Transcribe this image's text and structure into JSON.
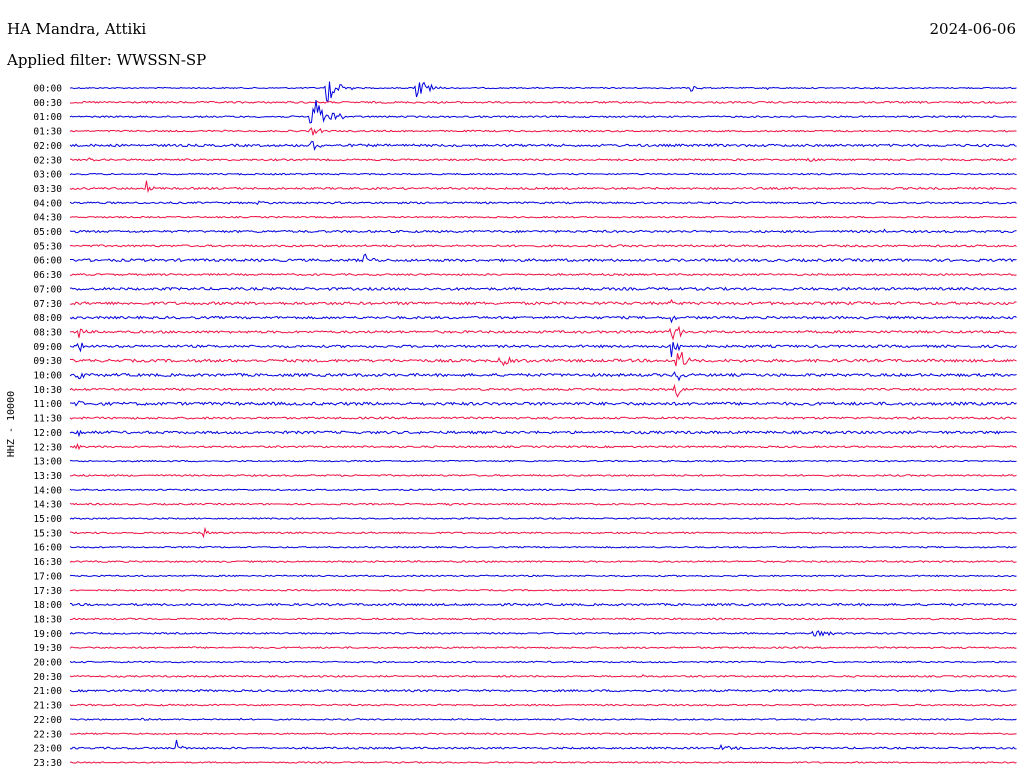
{
  "header": {
    "station": "HA Mandra, Attiki",
    "date": "2024-06-06",
    "filter": "Applied filter: WWSSN-SP"
  },
  "chart_data": {
    "type": "helicorder",
    "title": "HA Mandra, Attiki",
    "date": "2024-06-06",
    "filter": "WWSSN-SP",
    "ylabel": "HHZ - 10000",
    "colors": [
      "#0000dd",
      "#ee1144"
    ],
    "rows": [
      {
        "label": "00:00",
        "color": "#0000dd",
        "noise": 0.6,
        "events": [
          {
            "pos": 0.27,
            "amp": 18,
            "dur": 0.03
          },
          {
            "pos": 0.365,
            "amp": 14,
            "dur": 0.03
          },
          {
            "pos": 0.655,
            "amp": 5,
            "dur": 0.015
          },
          {
            "pos": 0.735,
            "amp": 2,
            "dur": 0.01
          }
        ]
      },
      {
        "label": "00:30",
        "color": "#ee1144",
        "noise": 0.9,
        "events": []
      },
      {
        "label": "01:00",
        "color": "#0000dd",
        "noise": 0.8,
        "events": [
          {
            "pos": 0.255,
            "amp": 26,
            "dur": 0.035
          }
        ]
      },
      {
        "label": "01:30",
        "color": "#ee1144",
        "noise": 0.8,
        "events": [
          {
            "pos": 0.255,
            "amp": 6,
            "dur": 0.02
          }
        ]
      },
      {
        "label": "02:00",
        "color": "#0000dd",
        "noise": 1.2,
        "events": [
          {
            "pos": 0.255,
            "amp": 6,
            "dur": 0.02
          }
        ]
      },
      {
        "label": "02:30",
        "color": "#ee1144",
        "noise": 0.9,
        "events": [
          {
            "pos": 0.02,
            "amp": 2,
            "dur": 0.01
          },
          {
            "pos": 0.555,
            "amp": 2,
            "dur": 0.01
          },
          {
            "pos": 0.78,
            "amp": 5,
            "dur": 0.02
          }
        ]
      },
      {
        "label": "03:00",
        "color": "#0000dd",
        "noise": 0.7,
        "events": []
      },
      {
        "label": "03:30",
        "color": "#ee1144",
        "noise": 1.0,
        "events": [
          {
            "pos": 0.08,
            "amp": 10,
            "dur": 0.012
          }
        ]
      },
      {
        "label": "04:00",
        "color": "#0000dd",
        "noise": 0.9,
        "events": [
          {
            "pos": 0.195,
            "amp": 2,
            "dur": 0.02
          }
        ]
      },
      {
        "label": "04:30",
        "color": "#ee1144",
        "noise": 0.7,
        "events": []
      },
      {
        "label": "05:00",
        "color": "#0000dd",
        "noise": 1.1,
        "events": [
          {
            "pos": 0.86,
            "amp": 3,
            "dur": 0.015
          }
        ]
      },
      {
        "label": "05:30",
        "color": "#ee1144",
        "noise": 1.0,
        "events": []
      },
      {
        "label": "06:00",
        "color": "#0000dd",
        "noise": 1.3,
        "events": [
          {
            "pos": 0.31,
            "amp": 7,
            "dur": 0.02
          }
        ]
      },
      {
        "label": "06:30",
        "color": "#ee1144",
        "noise": 0.9,
        "events": []
      },
      {
        "label": "07:00",
        "color": "#0000dd",
        "noise": 1.3,
        "events": []
      },
      {
        "label": "07:30",
        "color": "#ee1144",
        "noise": 1.4,
        "events": [
          {
            "pos": 0.635,
            "amp": 5,
            "dur": 0.01
          }
        ]
      },
      {
        "label": "08:00",
        "color": "#0000dd",
        "noise": 1.2,
        "events": [
          {
            "pos": 0.635,
            "amp": 6,
            "dur": 0.01
          }
        ]
      },
      {
        "label": "08:30",
        "color": "#ee1144",
        "noise": 1.2,
        "events": [
          {
            "pos": 0.008,
            "amp": 10,
            "dur": 0.01
          },
          {
            "pos": 0.635,
            "amp": 16,
            "dur": 0.018
          }
        ]
      },
      {
        "label": "09:00",
        "color": "#0000dd",
        "noise": 1.2,
        "events": [
          {
            "pos": 0.008,
            "amp": 12,
            "dur": 0.01
          },
          {
            "pos": 0.635,
            "amp": 12,
            "dur": 0.02
          }
        ]
      },
      {
        "label": "09:30",
        "color": "#ee1144",
        "noise": 1.4,
        "events": [
          {
            "pos": 0.455,
            "amp": 8,
            "dur": 0.03
          },
          {
            "pos": 0.64,
            "amp": 22,
            "dur": 0.02
          }
        ]
      },
      {
        "label": "10:00",
        "color": "#0000dd",
        "noise": 1.4,
        "events": [
          {
            "pos": 0.008,
            "amp": 14,
            "dur": 0.012
          },
          {
            "pos": 0.64,
            "amp": 8,
            "dur": 0.015
          }
        ]
      },
      {
        "label": "10:30",
        "color": "#ee1144",
        "noise": 1.0,
        "events": [
          {
            "pos": 0.008,
            "amp": 8,
            "dur": 0.008
          },
          {
            "pos": 0.64,
            "amp": 12,
            "dur": 0.01
          }
        ]
      },
      {
        "label": "11:00",
        "color": "#0000dd",
        "noise": 1.5,
        "events": [
          {
            "pos": 0.008,
            "amp": 6,
            "dur": 0.008
          }
        ]
      },
      {
        "label": "11:30",
        "color": "#ee1144",
        "noise": 1.0,
        "events": []
      },
      {
        "label": "12:00",
        "color": "#0000dd",
        "noise": 1.3,
        "events": [
          {
            "pos": 0.008,
            "amp": 8,
            "dur": 0.008
          }
        ]
      },
      {
        "label": "12:30",
        "color": "#ee1144",
        "noise": 0.9,
        "events": [
          {
            "pos": 0.008,
            "amp": 8,
            "dur": 0.006
          }
        ]
      },
      {
        "label": "13:00",
        "color": "#0000dd",
        "noise": 0.7,
        "events": []
      },
      {
        "label": "13:30",
        "color": "#ee1144",
        "noise": 0.8,
        "events": []
      },
      {
        "label": "14:00",
        "color": "#0000dd",
        "noise": 0.7,
        "events": []
      },
      {
        "label": "14:30",
        "color": "#ee1144",
        "noise": 0.8,
        "events": [
          {
            "pos": 0.4,
            "amp": 2,
            "dur": 0.01
          }
        ]
      },
      {
        "label": "15:00",
        "color": "#0000dd",
        "noise": 0.7,
        "events": []
      },
      {
        "label": "15:30",
        "color": "#ee1144",
        "noise": 0.8,
        "events": [
          {
            "pos": 0.14,
            "amp": 8,
            "dur": 0.012
          }
        ]
      },
      {
        "label": "16:00",
        "color": "#0000dd",
        "noise": 0.7,
        "events": []
      },
      {
        "label": "16:30",
        "color": "#ee1144",
        "noise": 0.8,
        "events": []
      },
      {
        "label": "17:00",
        "color": "#0000dd",
        "noise": 0.7,
        "events": [
          {
            "pos": 0.08,
            "amp": 2,
            "dur": 0.008
          },
          {
            "pos": 0.44,
            "amp": 2,
            "dur": 0.008
          }
        ]
      },
      {
        "label": "17:30",
        "color": "#ee1144",
        "noise": 0.7,
        "events": []
      },
      {
        "label": "18:00",
        "color": "#0000dd",
        "noise": 1.1,
        "events": []
      },
      {
        "label": "18:30",
        "color": "#ee1144",
        "noise": 0.8,
        "events": []
      },
      {
        "label": "19:00",
        "color": "#0000dd",
        "noise": 0.8,
        "events": [
          {
            "pos": 0.785,
            "amp": 4,
            "dur": 0.06
          }
        ]
      },
      {
        "label": "19:30",
        "color": "#ee1144",
        "noise": 0.8,
        "events": []
      },
      {
        "label": "20:00",
        "color": "#0000dd",
        "noise": 0.7,
        "events": []
      },
      {
        "label": "20:30",
        "color": "#ee1144",
        "noise": 0.8,
        "events": [
          {
            "pos": 0.605,
            "amp": 2,
            "dur": 0.008
          }
        ]
      },
      {
        "label": "21:00",
        "color": "#0000dd",
        "noise": 1.0,
        "events": []
      },
      {
        "label": "21:30",
        "color": "#ee1144",
        "noise": 0.8,
        "events": []
      },
      {
        "label": "22:00",
        "color": "#0000dd",
        "noise": 0.7,
        "events": [
          {
            "pos": 0.075,
            "amp": 2,
            "dur": 0.015
          },
          {
            "pos": 0.18,
            "amp": 2,
            "dur": 0.008
          }
        ]
      },
      {
        "label": "22:30",
        "color": "#ee1144",
        "noise": 0.7,
        "events": []
      },
      {
        "label": "23:00",
        "color": "#0000dd",
        "noise": 0.9,
        "events": [
          {
            "pos": 0.112,
            "amp": 10,
            "dur": 0.012
          },
          {
            "pos": 0.685,
            "amp": 3,
            "dur": 0.05
          }
        ]
      },
      {
        "label": "23:30",
        "color": "#ee1144",
        "noise": 0.7,
        "events": []
      }
    ]
  }
}
